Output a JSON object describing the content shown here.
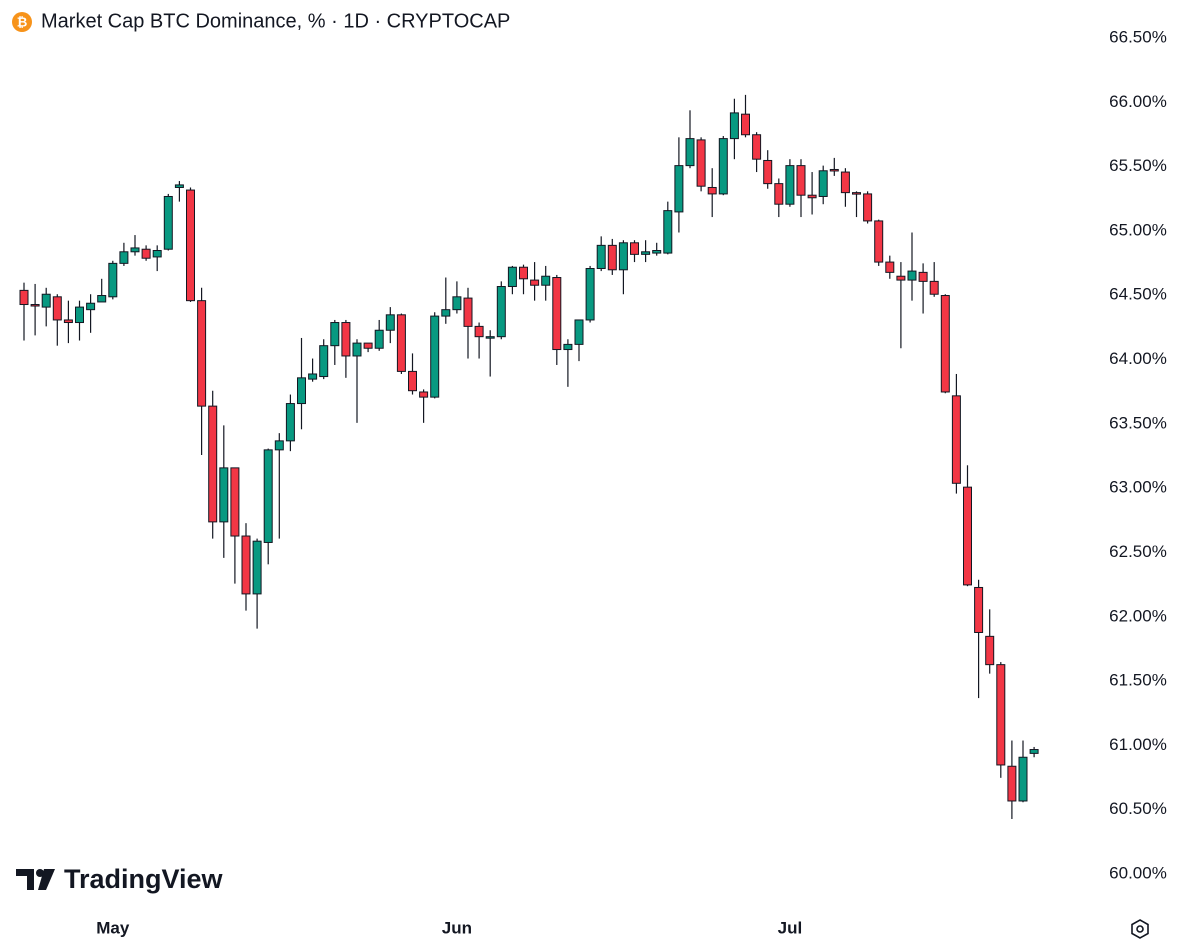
{
  "chart_data": {
    "type": "candlestick",
    "title": "Market Cap BTC Dominance, % · 1D · CRYPTOCAP",
    "brand": "TradingView",
    "categories": [
      null,
      null,
      null,
      null,
      null,
      null,
      null,
      null,
      "May",
      null,
      null,
      null,
      null,
      null,
      null,
      null,
      null,
      null,
      null,
      null,
      null,
      null,
      null,
      null,
      null,
      null,
      null,
      null,
      null,
      null,
      null,
      null,
      null,
      null,
      null,
      null,
      null,
      null,
      null,
      "Jun",
      null,
      null,
      null,
      null,
      null,
      null,
      null,
      null,
      null,
      null,
      null,
      null,
      null,
      null,
      null,
      null,
      null,
      null,
      null,
      null,
      null,
      null,
      null,
      null,
      null,
      null,
      null,
      null,
      null,
      "Jul",
      null,
      null,
      null,
      null,
      null,
      null,
      null,
      null,
      null,
      null,
      null,
      null,
      null,
      null,
      null,
      null,
      null,
      null,
      null,
      null,
      null,
      null
    ],
    "open": [
      64.53,
      64.42,
      64.4,
      64.48,
      64.3,
      64.28,
      64.38,
      64.44,
      64.48,
      64.74,
      64.83,
      64.85,
      64.79,
      64.85,
      65.33,
      65.31,
      64.45,
      63.63,
      62.73,
      63.15,
      62.62,
      62.17,
      62.57,
      63.29,
      63.36,
      63.65,
      63.84,
      63.86,
      64.1,
      64.28,
      64.02,
      64.12,
      64.08,
      64.22,
      64.34,
      63.9,
      63.74,
      63.7,
      64.33,
      64.38,
      64.47,
      64.25,
      64.16,
      64.17,
      64.56,
      64.71,
      64.61,
      64.57,
      64.63,
      64.07,
      64.11,
      64.3,
      64.7,
      64.88,
      64.69,
      64.9,
      64.81,
      64.82,
      64.82,
      65.14,
      65.5,
      65.7,
      65.33,
      65.28,
      65.71,
      65.9,
      65.74,
      65.54,
      65.36,
      65.2,
      65.5,
      65.27,
      65.26,
      65.47,
      65.45,
      65.29,
      65.28,
      65.07,
      64.75,
      64.64,
      64.61,
      64.67,
      64.6,
      64.49,
      63.71,
      63.0,
      62.22,
      61.84,
      61.62,
      60.83,
      60.56,
      60.93
    ],
    "high": [
      64.59,
      64.58,
      64.55,
      64.5,
      64.45,
      64.45,
      64.5,
      64.62,
      64.76,
      64.9,
      64.96,
      64.88,
      64.88,
      65.28,
      65.38,
      65.33,
      64.55,
      63.75,
      63.48,
      63.15,
      62.72,
      62.6,
      63.3,
      63.42,
      63.72,
      64.16,
      64.0,
      64.15,
      64.3,
      64.3,
      64.15,
      64.12,
      64.3,
      64.4,
      64.35,
      64.04,
      63.76,
      64.36,
      64.63,
      64.6,
      64.55,
      64.28,
      64.22,
      64.6,
      64.72,
      64.73,
      64.75,
      64.72,
      64.65,
      64.15,
      64.3,
      64.72,
      64.95,
      64.93,
      64.92,
      64.92,
      64.92,
      64.9,
      65.22,
      65.72,
      65.93,
      65.72,
      65.48,
      65.73,
      66.02,
      66.05,
      65.76,
      65.62,
      65.4,
      65.55,
      65.55,
      65.45,
      65.5,
      65.56,
      65.48,
      65.3,
      65.3,
      65.08,
      64.8,
      64.75,
      64.98,
      64.74,
      64.75,
      64.5,
      63.88,
      63.17,
      62.28,
      62.05,
      61.64,
      61.03,
      61.03,
      60.98
    ],
    "low": [
      64.14,
      64.18,
      64.25,
      64.1,
      64.12,
      64.14,
      64.2,
      64.45,
      64.46,
      64.72,
      64.8,
      64.76,
      64.68,
      64.84,
      65.22,
      64.44,
      63.25,
      62.6,
      62.45,
      62.25,
      62.04,
      61.9,
      62.4,
      62.6,
      63.28,
      63.45,
      63.82,
      63.84,
      63.95,
      63.85,
      63.5,
      64.05,
      64.06,
      64.12,
      63.88,
      63.72,
      63.5,
      63.69,
      64.27,
      64.35,
      64.0,
      64.0,
      63.86,
      64.15,
      64.5,
      64.5,
      64.45,
      64.45,
      63.95,
      63.78,
      63.98,
      64.28,
      64.68,
      64.65,
      64.5,
      64.75,
      64.75,
      64.8,
      64.81,
      64.98,
      65.48,
      65.3,
      65.1,
      65.27,
      65.55,
      65.72,
      65.45,
      65.32,
      65.1,
      65.18,
      65.1,
      65.12,
      65.2,
      65.42,
      65.18,
      65.1,
      65.05,
      64.72,
      64.62,
      64.08,
      64.45,
      64.35,
      64.48,
      63.73,
      62.95,
      62.23,
      61.36,
      61.55,
      60.74,
      60.42,
      60.55,
      60.9
    ],
    "close": [
      64.42,
      64.41,
      64.5,
      64.3,
      64.28,
      64.4,
      64.43,
      64.49,
      64.74,
      64.83,
      64.86,
      64.78,
      64.84,
      65.26,
      65.35,
      64.45,
      63.63,
      62.73,
      63.15,
      62.62,
      62.17,
      62.58,
      63.29,
      63.36,
      63.65,
      63.85,
      63.88,
      64.1,
      64.28,
      64.02,
      64.12,
      64.08,
      64.22,
      64.34,
      63.9,
      63.75,
      63.7,
      64.33,
      64.38,
      64.48,
      64.25,
      64.17,
      64.17,
      64.56,
      64.71,
      64.62,
      64.57,
      64.64,
      64.07,
      64.11,
      64.3,
      64.7,
      64.88,
      64.69,
      64.9,
      64.81,
      64.83,
      64.84,
      65.15,
      65.5,
      65.71,
      65.34,
      65.28,
      65.71,
      65.91,
      65.74,
      65.55,
      65.36,
      65.2,
      65.5,
      65.27,
      65.25,
      65.46,
      65.46,
      65.29,
      65.28,
      65.07,
      64.75,
      64.67,
      64.61,
      64.68,
      64.6,
      64.5,
      63.74,
      63.03,
      62.24,
      61.87,
      61.62,
      60.84,
      60.56,
      60.9,
      60.96
    ],
    "up_color": "#089981",
    "down_color": "#f23645",
    "ylim": [
      60,
      66.5
    ],
    "yticks": [
      {
        "value": 60,
        "label": "60.00%"
      },
      {
        "value": 60.5,
        "label": "60.50%"
      },
      {
        "value": 61,
        "label": "61.00%"
      },
      {
        "value": 61.5,
        "label": "61.50%"
      },
      {
        "value": 62,
        "label": "62.00%"
      },
      {
        "value": 62.5,
        "label": "62.50%"
      },
      {
        "value": 63,
        "label": "63.00%"
      },
      {
        "value": 63.5,
        "label": "63.50%"
      },
      {
        "value": 64,
        "label": "64.00%"
      },
      {
        "value": 64.5,
        "label": "64.50%"
      },
      {
        "value": 65,
        "label": "65.00%"
      },
      {
        "value": 65.5,
        "label": "65.50%"
      },
      {
        "value": 66,
        "label": "66.00%"
      },
      {
        "value": 66.5,
        "label": "66.50%"
      }
    ],
    "grid": false
  }
}
